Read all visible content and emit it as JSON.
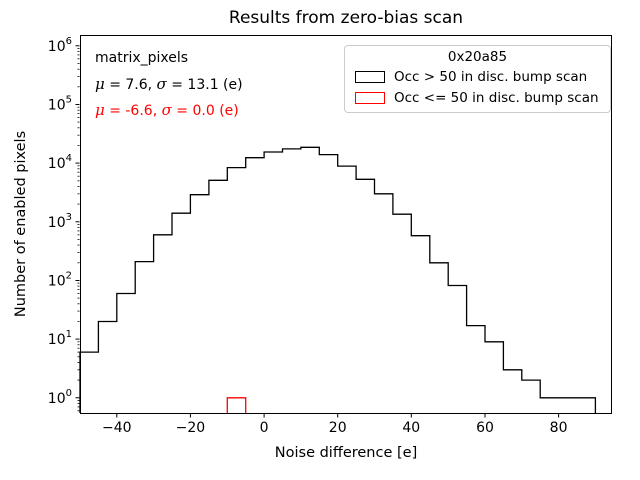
{
  "chart_data": {
    "type": "step-histogram",
    "title": "Results from zero-bias scan",
    "xlabel": "Noise difference [e]",
    "ylabel": "Number of enabled pixels",
    "xlim": [
      -50,
      94.5
    ],
    "ylim": [
      0.55,
      1530000
    ],
    "x_major_ticks": [
      -40,
      -20,
      0,
      20,
      40,
      60,
      80
    ],
    "y_major_decades": [
      0,
      1,
      2,
      3,
      4,
      5,
      6
    ],
    "grid": false,
    "bin_width": 5,
    "series": [
      {
        "name": "Occ > 50 in disc. bump scan",
        "color": "#000000",
        "bin_start": -50,
        "counts": [
          6,
          20,
          60,
          210,
          600,
          1400,
          2900,
          5100,
          8400,
          12400,
          15500,
          17500,
          18600,
          14000,
          8900,
          5300,
          3000,
          1350,
          580,
          200,
          82,
          17,
          9,
          3,
          2,
          1,
          1,
          1
        ]
      },
      {
        "name": "Occ <= 50 in disc. bump scan",
        "color": "#ff0000",
        "bin_start": -10,
        "counts": [
          1
        ]
      }
    ],
    "legend": {
      "title": "0x20a85",
      "position": "upper right",
      "entries": [
        {
          "label": "Occ > 50 in disc. bump scan",
          "color": "#000000"
        },
        {
          "label": "Occ <= 50 in disc. bump scan",
          "color": "#ff0000"
        }
      ]
    },
    "annotations": [
      {
        "text": "matrix_pixels",
        "color": "#000000"
      },
      {
        "text": "μ = 7.6, σ = 13.1 (e)",
        "color": "#000000"
      },
      {
        "text": "μ = -6.6, σ = 0.0 (e)",
        "color": "#ff0000"
      }
    ]
  },
  "colors": {
    "axes": "#000000",
    "legend_border": "#cccccc",
    "background": "#ffffff"
  }
}
